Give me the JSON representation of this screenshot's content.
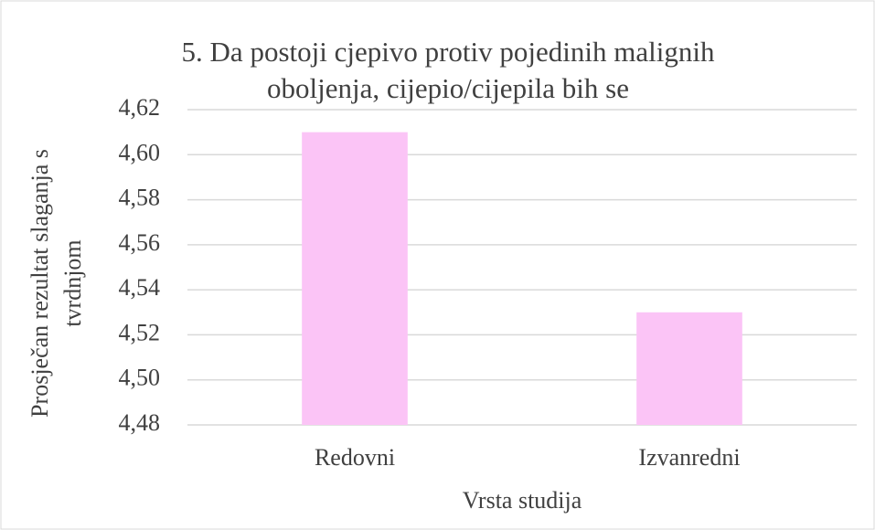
{
  "chart_data": {
    "type": "bar",
    "title": [
      "5. Da postoji cjepivo protiv pojedinih malignih",
      "oboljenja, cijepio/cijepila bih se"
    ],
    "y_label": [
      "Prosječan rezultat slaganja s",
      "tvrdnjom"
    ],
    "x_label": "Vrsta studija",
    "categories": [
      "Redovni",
      "Izvanredni"
    ],
    "values": [
      4.61,
      4.53
    ],
    "color": "#fbc4f6",
    "ylim": [
      4.48,
      4.62
    ],
    "yticks": [
      {
        "value": 4.48,
        "label": "4,48"
      },
      {
        "value": 4.5,
        "label": "4,50"
      },
      {
        "value": 4.52,
        "label": "4,52"
      },
      {
        "value": 4.54,
        "label": "4,54"
      },
      {
        "value": 4.56,
        "label": "4,56"
      },
      {
        "value": 4.58,
        "label": "4,58"
      },
      {
        "value": 4.6,
        "label": "4,60"
      },
      {
        "value": 4.62,
        "label": "4,62"
      }
    ],
    "grid": true
  }
}
